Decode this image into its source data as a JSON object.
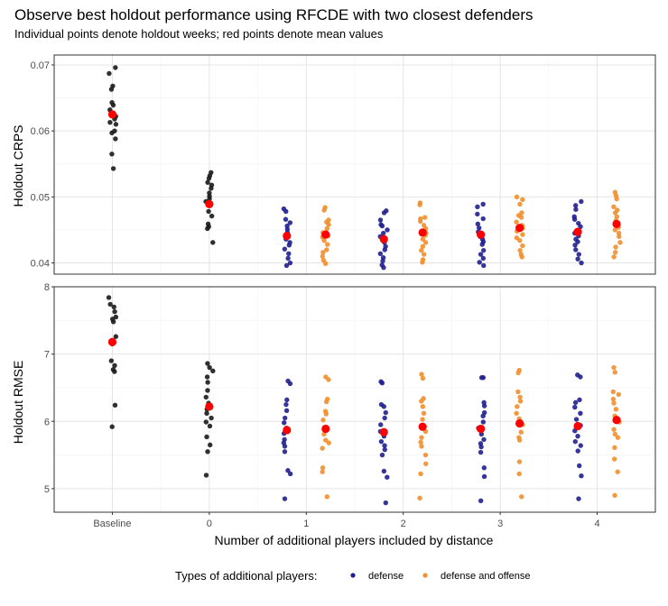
{
  "chart_data": {
    "type": "scatter",
    "title": "Observe best holdout performance using RFCDE with two closest defenders",
    "subtitle": "Individual points denote holdout weeks; red points denote mean values",
    "xlabel": "Number of additional players included by distance",
    "categories": [
      "Baseline",
      "0",
      "1",
      "2",
      "3",
      "4"
    ],
    "legend": {
      "title": "Types of additional players:",
      "position": "bottom",
      "entries": [
        {
          "name": "defense",
          "color": "#1f1f8f"
        },
        {
          "name": "defense and offense",
          "color": "#f28e2b"
        }
      ]
    },
    "colors": {
      "baseline": "#1a1a1a",
      "defense": "#1f1f8f",
      "defense and offense": "#f28e2b",
      "mean": "#ff0000"
    },
    "panels": [
      {
        "ylabel": "Holdout CRPS",
        "ylim": [
          0.0383,
          0.0715
        ],
        "yticks": [
          0.04,
          0.05,
          0.06,
          0.07
        ],
        "ytick_labels": [
          "0.04",
          "0.05",
          "0.06",
          "0.07"
        ],
        "grid": true,
        "groups": [
          {
            "x": "Baseline",
            "type": "baseline",
            "mean": 0.0625,
            "values": [
              0.0696,
              0.0687,
              0.0668,
              0.0663,
              0.0643,
              0.0639,
              0.0632,
              0.0628,
              0.0626,
              0.0622,
              0.0618,
              0.0613,
              0.061,
              0.06,
              0.0597,
              0.0588,
              0.0565,
              0.0543
            ]
          },
          {
            "x": "0",
            "type": "baseline",
            "mean": 0.0489,
            "values": [
              0.0537,
              0.0532,
              0.0528,
              0.0522,
              0.0518,
              0.0513,
              0.0506,
              0.0501,
              0.0497,
              0.0493,
              0.049,
              0.0487,
              0.0478,
              0.0471,
              0.0459,
              0.0455,
              0.0452,
              0.0431
            ]
          },
          {
            "x": "1",
            "type": "defense",
            "mean": 0.0441,
            "values": [
              0.0482,
              0.0478,
              0.0466,
              0.0461,
              0.0456,
              0.0451,
              0.0446,
              0.0443,
              0.0439,
              0.0436,
              0.0431,
              0.0427,
              0.0421,
              0.0414,
              0.0407,
              0.04,
              0.0396
            ]
          },
          {
            "x": "1",
            "type": "defense and offense",
            "mean": 0.0443,
            "values": [
              0.0484,
              0.048,
              0.0465,
              0.0462,
              0.0458,
              0.0452,
              0.0446,
              0.0441,
              0.0439,
              0.0434,
              0.0428,
              0.042,
              0.0416,
              0.041,
              0.0404,
              0.0399
            ]
          },
          {
            "x": "2",
            "type": "defense",
            "mean": 0.0436,
            "values": [
              0.0479,
              0.0476,
              0.0465,
              0.0458,
              0.0456,
              0.045,
              0.0445,
              0.044,
              0.0436,
              0.0431,
              0.0425,
              0.042,
              0.0414,
              0.0408,
              0.0403,
              0.0397,
              0.0393
            ]
          },
          {
            "x": "2",
            "type": "defense and offense",
            "mean": 0.0446,
            "values": [
              0.0491,
              0.0488,
              0.0469,
              0.0467,
              0.0463,
              0.0457,
              0.0452,
              0.0448,
              0.0445,
              0.0442,
              0.0436,
              0.0431,
              0.0425,
              0.0419,
              0.0413,
              0.0405,
              0.0401
            ]
          },
          {
            "x": "3",
            "type": "defense",
            "mean": 0.0443,
            "values": [
              0.0489,
              0.0485,
              0.0474,
              0.0467,
              0.0459,
              0.0453,
              0.0447,
              0.0443,
              0.044,
              0.0436,
              0.0432,
              0.0428,
              0.0419,
              0.0413,
              0.0407,
              0.0401,
              0.0396
            ]
          },
          {
            "x": "3",
            "type": "defense and offense",
            "mean": 0.0453,
            "values": [
              0.05,
              0.0496,
              0.0489,
              0.0476,
              0.0472,
              0.0469,
              0.0462,
              0.0457,
              0.0453,
              0.0448,
              0.0443,
              0.0438,
              0.0434,
              0.0426,
              0.0419,
              0.0413,
              0.0409
            ]
          },
          {
            "x": "4",
            "type": "defense",
            "mean": 0.0447,
            "values": [
              0.0493,
              0.0487,
              0.0481,
              0.047,
              0.0466,
              0.046,
              0.0455,
              0.0449,
              0.0445,
              0.0441,
              0.0436,
              0.0432,
              0.0427,
              0.042,
              0.0413,
              0.0406,
              0.04
            ]
          },
          {
            "x": "4",
            "type": "defense and offense",
            "mean": 0.0459,
            "values": [
              0.0507,
              0.0502,
              0.0497,
              0.0485,
              0.048,
              0.0476,
              0.047,
              0.0464,
              0.0458,
              0.0454,
              0.045,
              0.0445,
              0.044,
              0.0431,
              0.0424,
              0.0416,
              0.0409
            ]
          }
        ]
      },
      {
        "ylabel": "Holdout RMSE",
        "ylim": [
          4.65,
          8.0
        ],
        "yticks": [
          5,
          6,
          7,
          8
        ],
        "ytick_labels": [
          "5",
          "6",
          "7",
          "8"
        ],
        "grid": true,
        "groups": [
          {
            "x": "Baseline",
            "type": "baseline",
            "mean": 7.18,
            "values": [
              7.84,
              7.74,
              7.7,
              7.63,
              7.55,
              7.52,
              7.48,
              7.26,
              7.2,
              7.15,
              6.9,
              6.83,
              6.77,
              6.74,
              6.24,
              5.92
            ]
          },
          {
            "x": "0",
            "type": "baseline",
            "mean": 6.22,
            "values": [
              6.86,
              6.8,
              6.75,
              6.66,
              6.58,
              6.46,
              6.36,
              6.27,
              6.18,
              6.12,
              6.05,
              5.99,
              5.93,
              5.77,
              5.65,
              5.55,
              5.2
            ]
          },
          {
            "x": "1",
            "type": "defense",
            "mean": 5.87,
            "values": [
              6.6,
              6.56,
              6.32,
              6.25,
              6.16,
              6.05,
              5.98,
              5.9,
              5.82,
              5.73,
              5.68,
              5.63,
              5.55,
              5.27,
              5.22,
              4.85
            ]
          },
          {
            "x": "1",
            "type": "defense and offense",
            "mean": 5.89,
            "values": [
              6.66,
              6.62,
              6.33,
              6.29,
              6.15,
              6.11,
              6.02,
              5.9,
              5.81,
              5.72,
              5.68,
              5.6,
              5.31,
              5.25,
              4.88
            ]
          },
          {
            "x": "2",
            "type": "defense",
            "mean": 5.84,
            "values": [
              6.59,
              6.57,
              6.25,
              6.22,
              6.13,
              6.05,
              5.95,
              5.85,
              5.78,
              5.7,
              5.64,
              5.58,
              5.5,
              5.26,
              5.17,
              4.79
            ]
          },
          {
            "x": "2",
            "type": "defense and offense",
            "mean": 5.92,
            "values": [
              6.7,
              6.64,
              6.34,
              6.3,
              6.22,
              6.12,
              6.03,
              5.94,
              5.85,
              5.76,
              5.69,
              5.63,
              5.5,
              5.37,
              5.22,
              4.86
            ]
          },
          {
            "x": "3",
            "type": "defense",
            "mean": 5.89,
            "values": [
              6.65,
              6.65,
              6.28,
              6.23,
              6.13,
              6.08,
              5.99,
              5.9,
              5.81,
              5.73,
              5.67,
              5.62,
              5.54,
              5.31,
              5.18,
              4.82
            ]
          },
          {
            "x": "3",
            "type": "defense and offense",
            "mean": 5.97,
            "values": [
              6.76,
              6.72,
              6.44,
              6.36,
              6.3,
              6.22,
              6.12,
              6.04,
              5.95,
              5.84,
              5.76,
              5.72,
              5.4,
              5.22,
              4.88
            ]
          },
          {
            "x": "4",
            "type": "defense",
            "mean": 5.93,
            "values": [
              6.69,
              6.66,
              6.32,
              6.28,
              6.21,
              6.12,
              6.03,
              5.94,
              5.86,
              5.78,
              5.7,
              5.64,
              5.56,
              5.34,
              5.19,
              4.85
            ]
          },
          {
            "x": "4",
            "type": "defense and offense",
            "mean": 6.02,
            "values": [
              6.8,
              6.73,
              6.44,
              6.4,
              6.33,
              6.27,
              6.18,
              6.08,
              5.99,
              5.88,
              5.81,
              5.76,
              5.61,
              5.44,
              5.25,
              4.9
            ]
          }
        ]
      }
    ]
  }
}
